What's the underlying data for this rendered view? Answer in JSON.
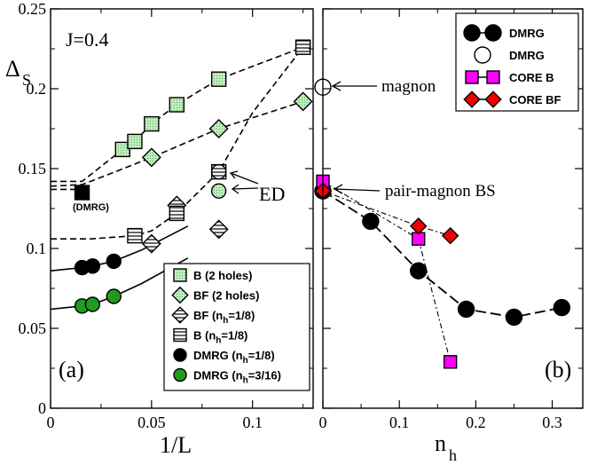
{
  "chart_data": [
    {
      "type": "scatter",
      "panel_label": "(a)",
      "annotation": "J=0.4",
      "ylabel_main": "Δ",
      "ylabel_sub": "S",
      "xlabel": "1/L",
      "xlim": [
        0,
        0.13
      ],
      "ylim": [
        0,
        0.25
      ],
      "xticks": [
        0,
        0.05,
        0.1
      ],
      "xtick_labels": [
        "0",
        "0.05",
        "0.1"
      ],
      "yticks": [
        0,
        0.05,
        0.1,
        0.15,
        0.2,
        0.25
      ],
      "ytick_labels": [
        "0",
        "0.05",
        "0.1",
        "0.15",
        "0.2",
        "0.25"
      ],
      "series": [
        {
          "name": "B (2 holes)",
          "marker": "square-dotted",
          "color": "#bfeebf",
          "x": [
            0.0357,
            0.0417,
            0.05,
            0.0625,
            0.0833,
            0.125
          ],
          "y": [
            0.162,
            0.167,
            0.178,
            0.19,
            0.206,
            0.226
          ]
        },
        {
          "name": "BF (2 holes)",
          "marker": "diamond-dotted",
          "color": "#bfeebf",
          "x": [
            0.05,
            0.0833,
            0.125
          ],
          "y": [
            0.157,
            0.175,
            0.192
          ]
        },
        {
          "name": "BF (n_h=1/8)",
          "marker": "diamond-hatched",
          "color": "#ffffff",
          "x": [
            0.05,
            0.0625,
            0.0833
          ],
          "y": [
            0.103,
            0.127,
            0.112
          ]
        },
        {
          "name": "B (n_h=1/8)",
          "marker": "square-hatched",
          "color": "#ffffff",
          "x": [
            0.0417,
            0.0625,
            0.0833,
            0.125
          ],
          "y": [
            0.108,
            0.122,
            0.148,
            0.226
          ]
        },
        {
          "name": "DMRG (n_h=1/8)",
          "marker": "circle",
          "color": "#000000",
          "x": [
            0.0156,
            0.0208,
            0.0313
          ],
          "y": [
            0.088,
            0.089,
            0.092
          ]
        },
        {
          "name": "DMRG (n_h=3/16)",
          "marker": "circle",
          "color": "#229922",
          "x": [
            0.0156,
            0.0208,
            0.0313
          ],
          "y": [
            0.064,
            0.065,
            0.07
          ]
        }
      ],
      "extra_points": [
        {
          "label": "(DMRG)",
          "marker": "square",
          "color": "#000000",
          "x": 0.0156,
          "y": 0.135
        },
        {
          "label": "ED",
          "marker": "circle-hatched",
          "color": "#ffffff",
          "x": 0.0833,
          "y": 0.148
        },
        {
          "label": "ED",
          "marker": "circle-dotted",
          "color": "#bfeebf",
          "x": 0.0833,
          "y": 0.136
        }
      ],
      "fit_curves": [
        {
          "style": "dashed",
          "x": [
            0,
            0.0156,
            0.0357,
            0.0417,
            0.05,
            0.0625,
            0.0833,
            0.125
          ],
          "y": [
            0.142,
            0.142,
            0.162,
            0.167,
            0.178,
            0.19,
            0.206,
            0.226
          ]
        },
        {
          "style": "dashed",
          "x": [
            0,
            0.0156,
            0.03,
            0.05,
            0.0833,
            0.125
          ],
          "y": [
            0.139,
            0.14,
            0.147,
            0.157,
            0.175,
            0.192
          ]
        },
        {
          "style": "dashed",
          "x": [
            0,
            0.0156
          ],
          "y": [
            0.137,
            0.137
          ]
        },
        {
          "style": "dashed",
          "x": [
            0,
            0.02,
            0.0417,
            0.05,
            0.0625,
            0.0833,
            0.1,
            0.125
          ],
          "y": [
            0.106,
            0.106,
            0.108,
            0.111,
            0.122,
            0.148,
            0.185,
            0.226
          ]
        },
        {
          "style": "solid",
          "x": [
            0,
            0.0156,
            0.0208,
            0.0313,
            0.045,
            0.068
          ],
          "y": [
            0.086,
            0.088,
            0.089,
            0.092,
            0.099,
            0.114
          ]
        },
        {
          "style": "solid",
          "x": [
            0,
            0.0156,
            0.0208,
            0.0313,
            0.045,
            0.068
          ],
          "y": [
            0.062,
            0.064,
            0.065,
            0.07,
            0.078,
            0.094
          ]
        }
      ],
      "annotations": [
        "ED",
        "(DMRG)"
      ],
      "legend_position": "bottom-right"
    },
    {
      "type": "line",
      "panel_label": "(b)",
      "xlabel_main": "n",
      "xlabel_sub": "h",
      "xlim": [
        0,
        0.34
      ],
      "ylim": [
        0,
        0.25
      ],
      "xticks": [
        0,
        0.1,
        0.2,
        0.3
      ],
      "xtick_labels": [
        "0",
        "0.1",
        "0.2",
        "0.3"
      ],
      "series": [
        {
          "name": "DMRG",
          "marker": "circle",
          "color": "#000000",
          "line": "long-dash",
          "x": [
            0,
            0.0625,
            0.125,
            0.1875,
            0.25,
            0.3125
          ],
          "y": [
            0.136,
            0.117,
            0.086,
            0.062,
            0.057,
            0.063
          ]
        },
        {
          "name": "DMRG",
          "marker": "circle-open",
          "color": "#ffffff",
          "line": "none",
          "x": [
            0
          ],
          "y": [
            0.201
          ]
        },
        {
          "name": "CORE B",
          "marker": "square",
          "color": "#ff00ff",
          "line": "dash-dot",
          "x": [
            0,
            0.125,
            0.1667
          ],
          "y": [
            0.142,
            0.106,
            0.029
          ]
        },
        {
          "name": "CORE BF",
          "marker": "diamond",
          "color": "#ee0000",
          "line": "dash-dot",
          "x": [
            0,
            0.125,
            0.1667
          ],
          "y": [
            0.136,
            0.114,
            0.108
          ]
        }
      ],
      "annotations": [
        "magnon",
        "pair-magnon BS"
      ],
      "legend_position": "top-right"
    }
  ]
}
